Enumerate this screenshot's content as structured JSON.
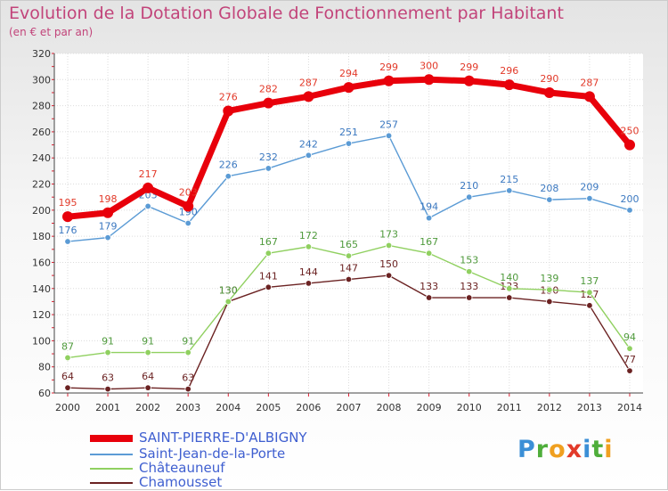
{
  "header": {
    "title": "Evolution de la Dotation Globale de Fonctionnement par Habitant",
    "subtitle": "(en € et par an)"
  },
  "logo": {
    "text": "Proxiti",
    "letters": [
      "P",
      "r",
      "o",
      "x",
      "i",
      "t",
      "i"
    ],
    "colors": [
      "#3b8fd6",
      "#4fae3b",
      "#f0a020",
      "#e23a2a",
      "#3b8fd6",
      "#4fae3b",
      "#f0a020"
    ]
  },
  "chart_data": {
    "type": "line",
    "title": "Evolution de la Dotation Globale de Fonctionnement par Habitant",
    "ylabel": "(en € et par an)",
    "xlabel": "",
    "ylim": [
      60,
      320
    ],
    "y_ticks": [
      60,
      80,
      100,
      120,
      140,
      160,
      180,
      200,
      220,
      240,
      260,
      280,
      300,
      320
    ],
    "grid": true,
    "legend_position": "bottom-left",
    "categories": [
      "2000",
      "2001",
      "2002",
      "2003",
      "2004",
      "2005",
      "2006",
      "2007",
      "2008",
      "2009",
      "2010",
      "2011",
      "2012",
      "2013",
      "2014"
    ],
    "series": [
      {
        "name": "SAINT-PIERRE-D'ALBIGNY",
        "values": [
          195,
          198,
          217,
          203,
          276,
          282,
          287,
          294,
          299,
          300,
          299,
          296,
          290,
          287,
          250
        ],
        "labels": [
          "195",
          "198",
          "217",
          "203",
          "276",
          "282",
          "287",
          "294",
          "299",
          "300",
          "299",
          "296",
          "290",
          "287",
          "250"
        ],
        "color": "#e8000b",
        "emphasis": "bold",
        "label_color": "#e23a2a"
      },
      {
        "name": "Saint-Jean-de-la-Porte",
        "values": [
          176,
          179,
          203,
          190,
          226,
          232,
          242,
          251,
          257,
          194,
          210,
          215,
          208,
          209,
          200
        ],
        "labels": [
          "176",
          "179",
          "203",
          "190",
          "226",
          "232",
          "242",
          "251",
          "257",
          "194",
          "210",
          "215",
          "208",
          "209",
          "200"
        ],
        "color": "#5b9bd5",
        "label_color": "#3b78c0"
      },
      {
        "name": "Châteauneuf",
        "values": [
          87,
          91,
          91,
          91,
          130,
          167,
          172,
          165,
          173,
          167,
          153,
          140,
          139,
          137,
          94
        ],
        "labels": [
          "87",
          "91",
          "91",
          "91",
          "130",
          "167",
          "172",
          "165",
          "173",
          "167",
          "153",
          "140",
          "139",
          "137",
          "94"
        ],
        "color": "#90d060",
        "label_color": "#4f9a3c"
      },
      {
        "name": "Chamousset",
        "values": [
          64,
          63,
          64,
          63,
          130,
          141,
          144,
          147,
          150,
          133,
          133,
          133,
          130,
          127,
          77
        ],
        "labels": [
          "64",
          "63",
          "64",
          "63",
          "130",
          "141",
          "144",
          "147",
          "150",
          "133",
          "133",
          "133",
          "130",
          "127",
          "77"
        ],
        "color": "#6b2222",
        "label_color": "#6b2222"
      }
    ]
  }
}
